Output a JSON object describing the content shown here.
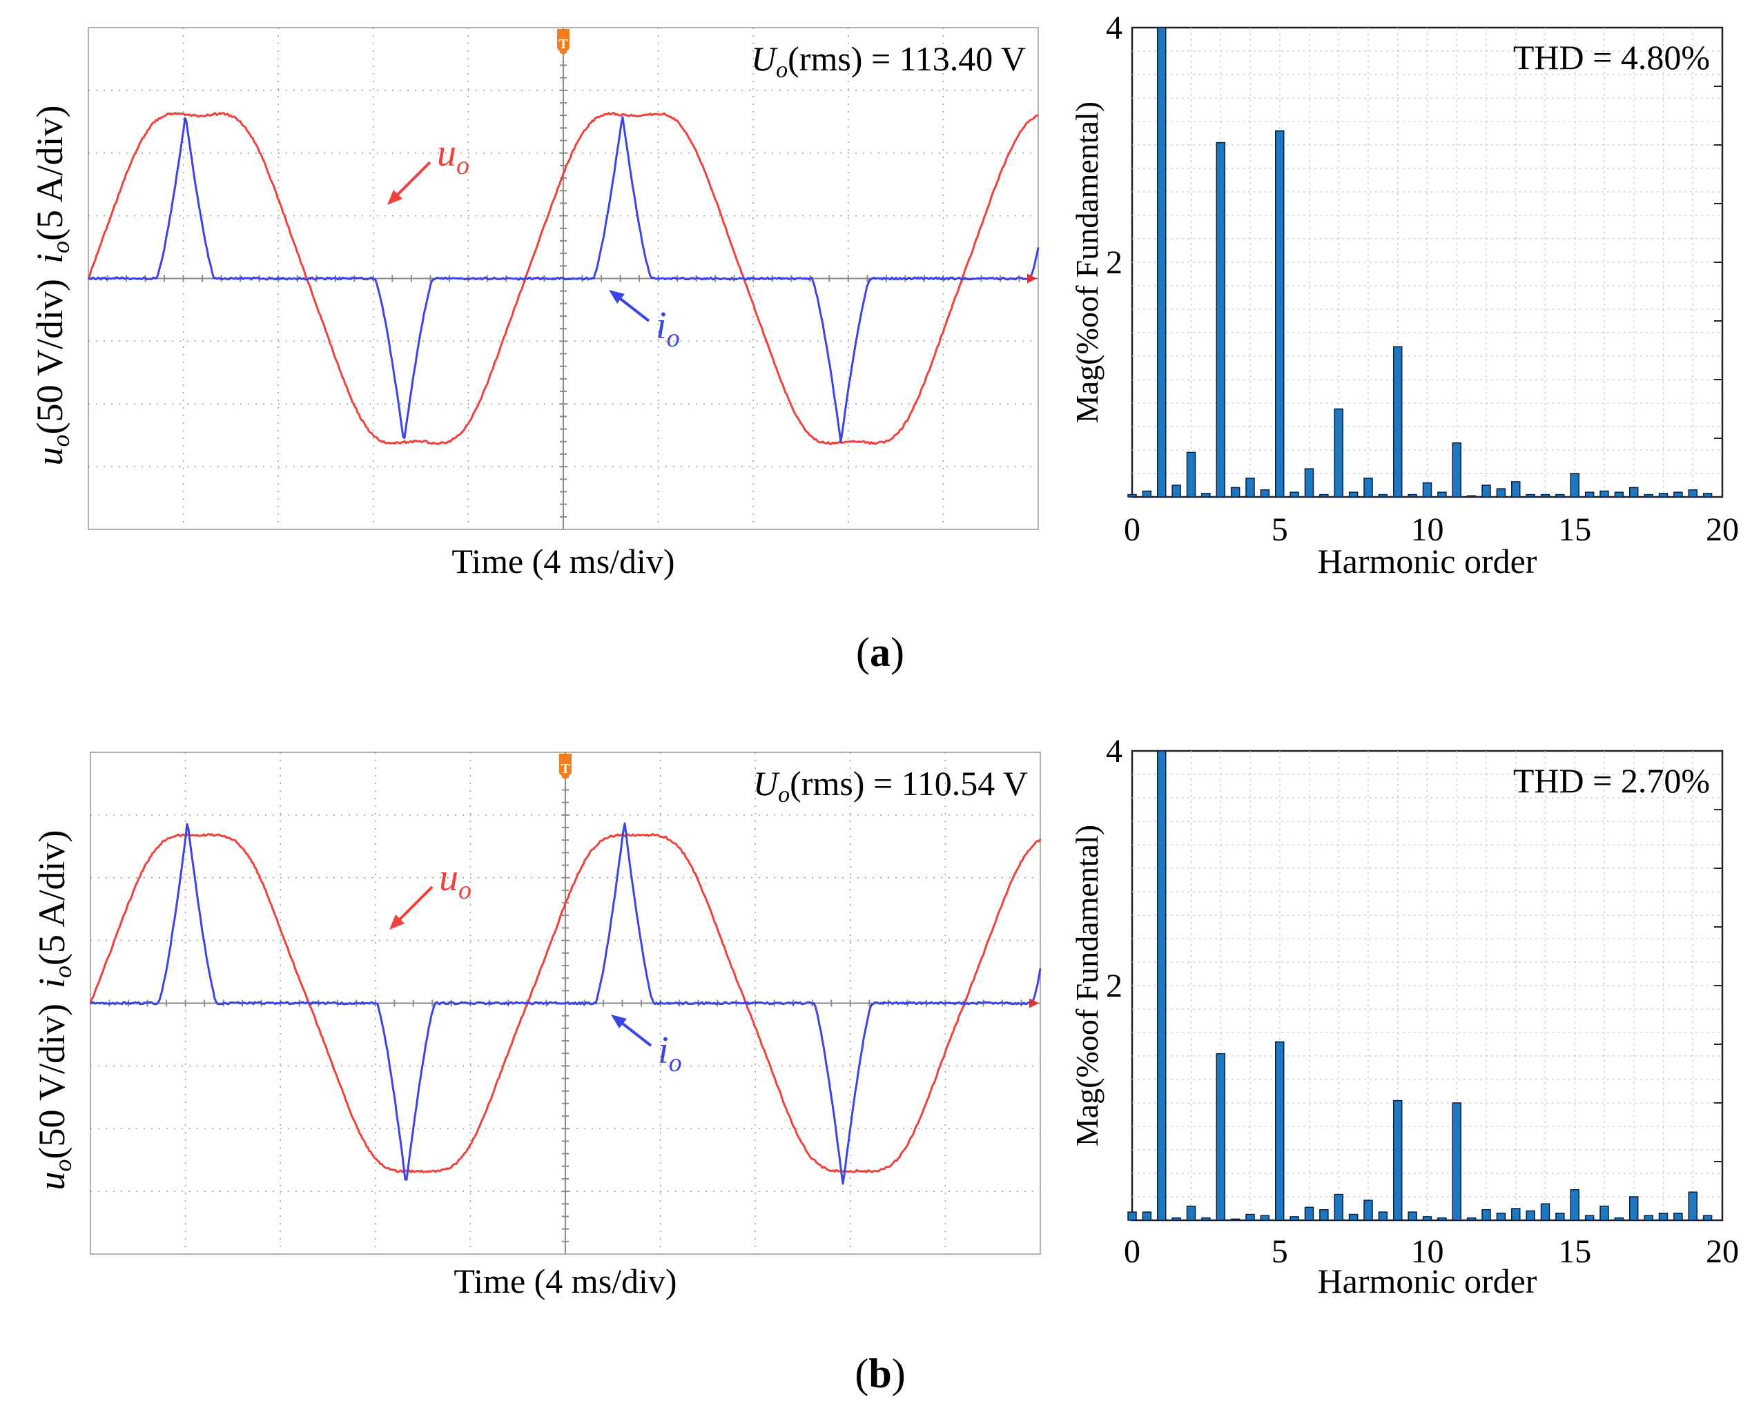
{
  "colors": {
    "voltage": "#f0423c",
    "current": "#3b45e6",
    "bar": "#1e78c0",
    "trigger": "#f07d1e"
  },
  "panels": [
    {
      "caption": "a",
      "scope": {
        "rms_symbol": "U",
        "rms_subscript": "o",
        "rms_text": "(rms) = 113.40 V",
        "xlabel": "Time (4 ms/div)",
        "ylabel_u": "u",
        "ylabel_u_sub": "o",
        "ylabel_u_unit": "(50 V/div)",
        "ylabel_i": "i",
        "ylabel_i_sub": "o",
        "ylabel_i_unit": "(5 A/div)",
        "trigger_marker": "T",
        "u_label": "u",
        "u_label_sub": "o",
        "i_label": "i",
        "i_label_sub": "o",
        "u_amplitude_div": 3.0,
        "i_peak_div": 2.6,
        "i_conduction_phase_deg": 48
      },
      "chart_data": {
        "type": "bar",
        "title": "THD = 4.80%",
        "xlabel": "Harmonic order",
        "ylabel": "Mag(%oof Fundamental)",
        "xlim": [
          0,
          20
        ],
        "ylim": [
          0,
          4
        ],
        "xticks": [
          "0",
          "5",
          "10",
          "15",
          "20"
        ],
        "yticks": [
          "2",
          "4"
        ],
        "x": [
          0,
          0.5,
          1,
          1.5,
          2,
          2.5,
          3,
          3.5,
          4,
          4.5,
          5,
          5.5,
          6,
          6.5,
          7,
          7.5,
          8,
          8.5,
          9,
          9.5,
          10,
          10.5,
          11,
          11.5,
          12,
          12.5,
          13,
          13.5,
          14,
          14.5,
          15,
          15.5,
          16,
          16.5,
          17,
          17.5,
          18,
          18.5,
          19,
          19.5
        ],
        "values": [
          0.02,
          0.05,
          4.0,
          0.1,
          0.38,
          0.03,
          3.02,
          0.08,
          0.16,
          0.06,
          3.12,
          0.04,
          0.24,
          0.02,
          0.75,
          0.04,
          0.16,
          0.02,
          1.28,
          0.02,
          0.12,
          0.04,
          0.46,
          0.01,
          0.1,
          0.07,
          0.13,
          0.02,
          0.02,
          0.02,
          0.2,
          0.04,
          0.05,
          0.04,
          0.08,
          0.02,
          0.03,
          0.04,
          0.06,
          0.03
        ]
      }
    },
    {
      "caption": "b",
      "scope": {
        "rms_symbol": "U",
        "rms_subscript": "o",
        "rms_text": "(rms) = 110.54 V",
        "xlabel": "Time (4 ms/div)",
        "ylabel_u": "u",
        "ylabel_u_sub": "o",
        "ylabel_u_unit": "(50 V/div)",
        "ylabel_i": "i",
        "ylabel_i_sub": "o",
        "ylabel_i_unit": "(5 A/div)",
        "trigger_marker": "T",
        "u_label": "u",
        "u_label_sub": "o",
        "i_label": "i",
        "i_label_sub": "o",
        "u_amplitude_div": 3.0,
        "i_peak_div": 2.9,
        "i_conduction_phase_deg": 48
      },
      "chart_data": {
        "type": "bar",
        "title": "THD = 2.70%",
        "xlabel": "Harmonic order",
        "ylabel": "Mag(%oof Fundamental)",
        "xlim": [
          0,
          20
        ],
        "ylim": [
          0,
          4
        ],
        "xticks": [
          "0",
          "5",
          "10",
          "15",
          "20"
        ],
        "yticks": [
          "2",
          "4"
        ],
        "x": [
          0,
          0.5,
          1,
          1.5,
          2,
          2.5,
          3,
          3.5,
          4,
          4.5,
          5,
          5.5,
          6,
          6.5,
          7,
          7.5,
          8,
          8.5,
          9,
          9.5,
          10,
          10.5,
          11,
          11.5,
          12,
          12.5,
          13,
          13.5,
          14,
          14.5,
          15,
          15.5,
          16,
          16.5,
          17,
          17.5,
          18,
          18.5,
          19,
          19.5
        ],
        "values": [
          0.07,
          0.07,
          4.0,
          0.02,
          0.12,
          0.02,
          1.42,
          0.01,
          0.05,
          0.04,
          1.52,
          0.03,
          0.11,
          0.09,
          0.22,
          0.05,
          0.17,
          0.07,
          1.02,
          0.07,
          0.03,
          0.02,
          1.0,
          0.02,
          0.09,
          0.06,
          0.1,
          0.08,
          0.14,
          0.06,
          0.26,
          0.04,
          0.12,
          0.02,
          0.2,
          0.04,
          0.06,
          0.06,
          0.24,
          0.04
        ]
      }
    }
  ]
}
